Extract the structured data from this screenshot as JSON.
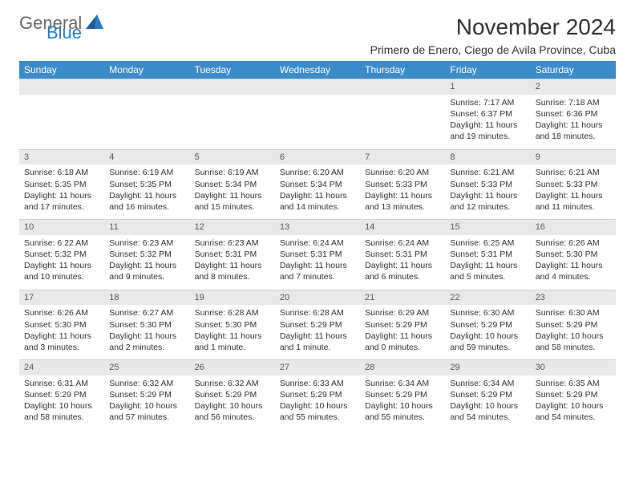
{
  "logo": {
    "part1": "General",
    "part2": "Blue"
  },
  "title": "November 2024",
  "location": "Primero de Enero, Ciego de Avila Province, Cuba",
  "colors": {
    "header_bg": "#3b8bc9",
    "header_text": "#ffffff",
    "daynum_bg": "#e9e9e9",
    "text": "#333333",
    "logo_gray": "#6b6b6b",
    "logo_blue": "#2f7bbf"
  },
  "weekdays": [
    "Sunday",
    "Monday",
    "Tuesday",
    "Wednesday",
    "Thursday",
    "Friday",
    "Saturday"
  ],
  "weeks": [
    [
      null,
      null,
      null,
      null,
      null,
      {
        "n": "1",
        "sr": "7:17 AM",
        "ss": "6:37 PM",
        "dl": "11 hours and 19 minutes."
      },
      {
        "n": "2",
        "sr": "7:18 AM",
        "ss": "6:36 PM",
        "dl": "11 hours and 18 minutes."
      }
    ],
    [
      {
        "n": "3",
        "sr": "6:18 AM",
        "ss": "5:35 PM",
        "dl": "11 hours and 17 minutes."
      },
      {
        "n": "4",
        "sr": "6:19 AM",
        "ss": "5:35 PM",
        "dl": "11 hours and 16 minutes."
      },
      {
        "n": "5",
        "sr": "6:19 AM",
        "ss": "5:34 PM",
        "dl": "11 hours and 15 minutes."
      },
      {
        "n": "6",
        "sr": "6:20 AM",
        "ss": "5:34 PM",
        "dl": "11 hours and 14 minutes."
      },
      {
        "n": "7",
        "sr": "6:20 AM",
        "ss": "5:33 PM",
        "dl": "11 hours and 13 minutes."
      },
      {
        "n": "8",
        "sr": "6:21 AM",
        "ss": "5:33 PM",
        "dl": "11 hours and 12 minutes."
      },
      {
        "n": "9",
        "sr": "6:21 AM",
        "ss": "5:33 PM",
        "dl": "11 hours and 11 minutes."
      }
    ],
    [
      {
        "n": "10",
        "sr": "6:22 AM",
        "ss": "5:32 PM",
        "dl": "11 hours and 10 minutes."
      },
      {
        "n": "11",
        "sr": "6:23 AM",
        "ss": "5:32 PM",
        "dl": "11 hours and 9 minutes."
      },
      {
        "n": "12",
        "sr": "6:23 AM",
        "ss": "5:31 PM",
        "dl": "11 hours and 8 minutes."
      },
      {
        "n": "13",
        "sr": "6:24 AM",
        "ss": "5:31 PM",
        "dl": "11 hours and 7 minutes."
      },
      {
        "n": "14",
        "sr": "6:24 AM",
        "ss": "5:31 PM",
        "dl": "11 hours and 6 minutes."
      },
      {
        "n": "15",
        "sr": "6:25 AM",
        "ss": "5:31 PM",
        "dl": "11 hours and 5 minutes."
      },
      {
        "n": "16",
        "sr": "6:26 AM",
        "ss": "5:30 PM",
        "dl": "11 hours and 4 minutes."
      }
    ],
    [
      {
        "n": "17",
        "sr": "6:26 AM",
        "ss": "5:30 PM",
        "dl": "11 hours and 3 minutes."
      },
      {
        "n": "18",
        "sr": "6:27 AM",
        "ss": "5:30 PM",
        "dl": "11 hours and 2 minutes."
      },
      {
        "n": "19",
        "sr": "6:28 AM",
        "ss": "5:30 PM",
        "dl": "11 hours and 1 minute."
      },
      {
        "n": "20",
        "sr": "6:28 AM",
        "ss": "5:29 PM",
        "dl": "11 hours and 1 minute."
      },
      {
        "n": "21",
        "sr": "6:29 AM",
        "ss": "5:29 PM",
        "dl": "11 hours and 0 minutes."
      },
      {
        "n": "22",
        "sr": "6:30 AM",
        "ss": "5:29 PM",
        "dl": "10 hours and 59 minutes."
      },
      {
        "n": "23",
        "sr": "6:30 AM",
        "ss": "5:29 PM",
        "dl": "10 hours and 58 minutes."
      }
    ],
    [
      {
        "n": "24",
        "sr": "6:31 AM",
        "ss": "5:29 PM",
        "dl": "10 hours and 58 minutes."
      },
      {
        "n": "25",
        "sr": "6:32 AM",
        "ss": "5:29 PM",
        "dl": "10 hours and 57 minutes."
      },
      {
        "n": "26",
        "sr": "6:32 AM",
        "ss": "5:29 PM",
        "dl": "10 hours and 56 minutes."
      },
      {
        "n": "27",
        "sr": "6:33 AM",
        "ss": "5:29 PM",
        "dl": "10 hours and 55 minutes."
      },
      {
        "n": "28",
        "sr": "6:34 AM",
        "ss": "5:29 PM",
        "dl": "10 hours and 55 minutes."
      },
      {
        "n": "29",
        "sr": "6:34 AM",
        "ss": "5:29 PM",
        "dl": "10 hours and 54 minutes."
      },
      {
        "n": "30",
        "sr": "6:35 AM",
        "ss": "5:29 PM",
        "dl": "10 hours and 54 minutes."
      }
    ]
  ],
  "labels": {
    "sunrise": "Sunrise:",
    "sunset": "Sunset:",
    "daylight": "Daylight:"
  }
}
